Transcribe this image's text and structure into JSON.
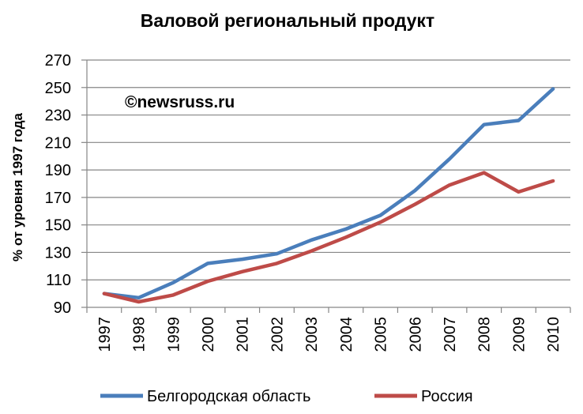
{
  "chart_data": {
    "type": "line",
    "title": "Валовой региональный продукт",
    "ylabel": "% от уровня  1997 года",
    "xlabel": "",
    "watermark": "©newsruss.ru",
    "categories": [
      "1997",
      "1998",
      "1999",
      "2000",
      "2001",
      "2002",
      "2003",
      "2004",
      "2005",
      "2006",
      "2007",
      "2008",
      "2009",
      "2010"
    ],
    "ylim": [
      90,
      270
    ],
    "yticks": [
      90,
      110,
      130,
      150,
      170,
      190,
      210,
      230,
      250,
      270
    ],
    "grid": true,
    "legend": "bottom",
    "series": [
      {
        "name": "Белгородская область",
        "color": "#4a7ebb",
        "values": [
          100,
          97,
          108,
          122,
          125,
          129,
          139,
          147,
          157,
          175,
          198,
          223,
          226,
          249
        ]
      },
      {
        "name": "Россия",
        "color": "#be4b48",
        "values": [
          100,
          94,
          99,
          109,
          116,
          122,
          131,
          141,
          152,
          165,
          179,
          188,
          174,
          182
        ]
      }
    ]
  }
}
